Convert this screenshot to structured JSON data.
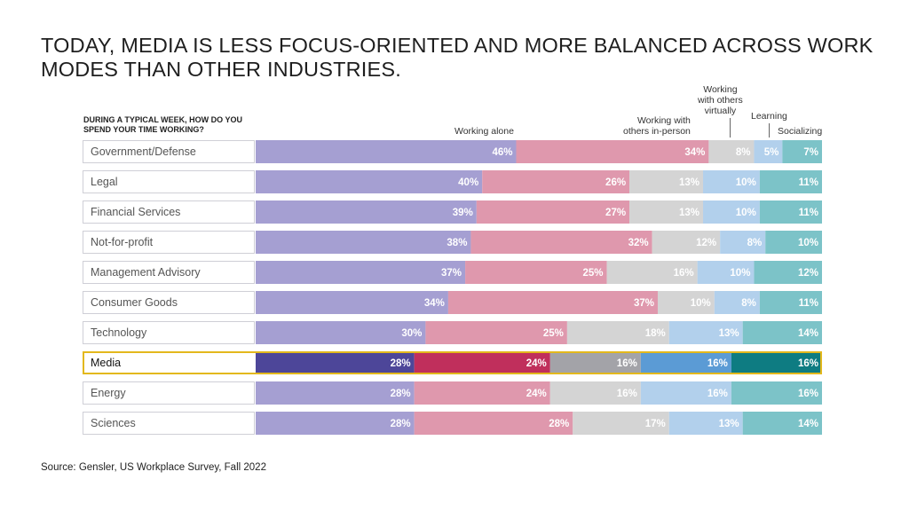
{
  "title": "TODAY, MEDIA IS LESS FOCUS-ORIENTED AND MORE BALANCED ACROSS WORK MODES THAN OTHER INDUSTRIES.",
  "source": "Source: Gensler, US Workplace Survey, Fall 2022",
  "chart_data": {
    "type": "bar",
    "orientation": "horizontal-stacked-100",
    "question": "DURING A TYPICAL WEEK, HOW DO YOU SPEND YOUR TIME WORKING?",
    "highlight": "Media",
    "value_suffix": "%",
    "categories": [
      "Government/Defense",
      "Legal",
      "Financial Services",
      "Not-for-profit",
      "Management Advisory",
      "Consumer Goods",
      "Technology",
      "Media",
      "Energy",
      "Sciences"
    ],
    "series": [
      {
        "name": "Working alone",
        "color": "#a59fd2",
        "highlight_color": "#4d4699",
        "values": [
          46,
          40,
          39,
          38,
          37,
          34,
          30,
          28,
          28,
          28
        ]
      },
      {
        "name": "Working with others in-person",
        "color": "#df98ad",
        "highlight_color": "#c02f5c",
        "values": [
          34,
          26,
          27,
          32,
          25,
          37,
          25,
          24,
          24,
          28
        ]
      },
      {
        "name": "Working with others virtually",
        "color": "#d4d4d4",
        "highlight_color": "#a3a3a8",
        "values": [
          8,
          13,
          13,
          12,
          16,
          10,
          18,
          16,
          16,
          17
        ]
      },
      {
        "name": "Learning",
        "color": "#b2d0ec",
        "highlight_color": "#5b9bd5",
        "values": [
          5,
          10,
          10,
          8,
          10,
          8,
          13,
          16,
          16,
          13
        ]
      },
      {
        "name": "Socializing",
        "color": "#7cc3c8",
        "highlight_color": "#0e7c82",
        "values": [
          7,
          11,
          11,
          10,
          12,
          11,
          14,
          16,
          16,
          14
        ]
      }
    ],
    "column_labels": {
      "working_alone": "Working alone",
      "in_person_1": "Working with",
      "in_person_2": "others in-person",
      "virtual_1": "Working",
      "virtual_2": "with others",
      "virtual_3": "virtually",
      "learning": "Learning",
      "socializing": "Socializing"
    }
  }
}
